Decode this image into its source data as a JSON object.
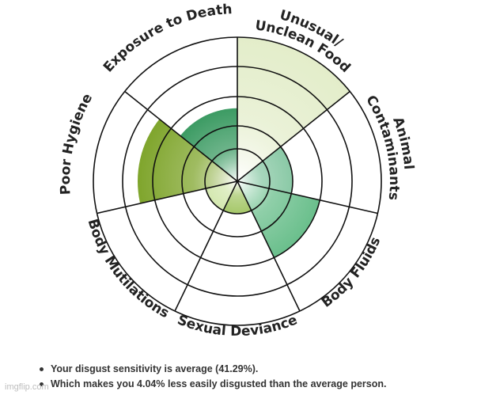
{
  "chart_data": {
    "type": "polar-area",
    "categories": [
      "Unusual/ Unclean Food",
      "Animal Contaminants",
      "Body Fluids",
      "Sexual Deviance",
      "Body Mutilations",
      "Poor Hygiene",
      "Exposure to Death"
    ],
    "label_lines": [
      [
        "Unusual/",
        "Unclean Food"
      ],
      [
        "Animal",
        "Contaminants"
      ],
      [
        "Body Fluids"
      ],
      [
        "Sexual Deviance"
      ],
      [
        "Body Mutilations"
      ],
      [
        "Poor Hygiene"
      ],
      [
        "Exposure to Death"
      ]
    ],
    "values": [
      5,
      2,
      3,
      1,
      1,
      3.5,
      2.6
    ],
    "max": 5,
    "rings": 5,
    "sector_colors": [
      "#b9d27a",
      "#8ac9a6",
      "#6abf8c",
      "#a6c86a",
      "#d4e8b0",
      "#7fa52c",
      "#3c9b63"
    ],
    "sector_opacity": [
      0.4,
      1,
      1,
      1,
      1,
      1,
      1
    ]
  },
  "summary": [
    "Your disgust sensitivity is average (41.29%).",
    "Which makes you 4.04% less easily disgusted than the average person."
  ],
  "watermark": "imgflip.com"
}
